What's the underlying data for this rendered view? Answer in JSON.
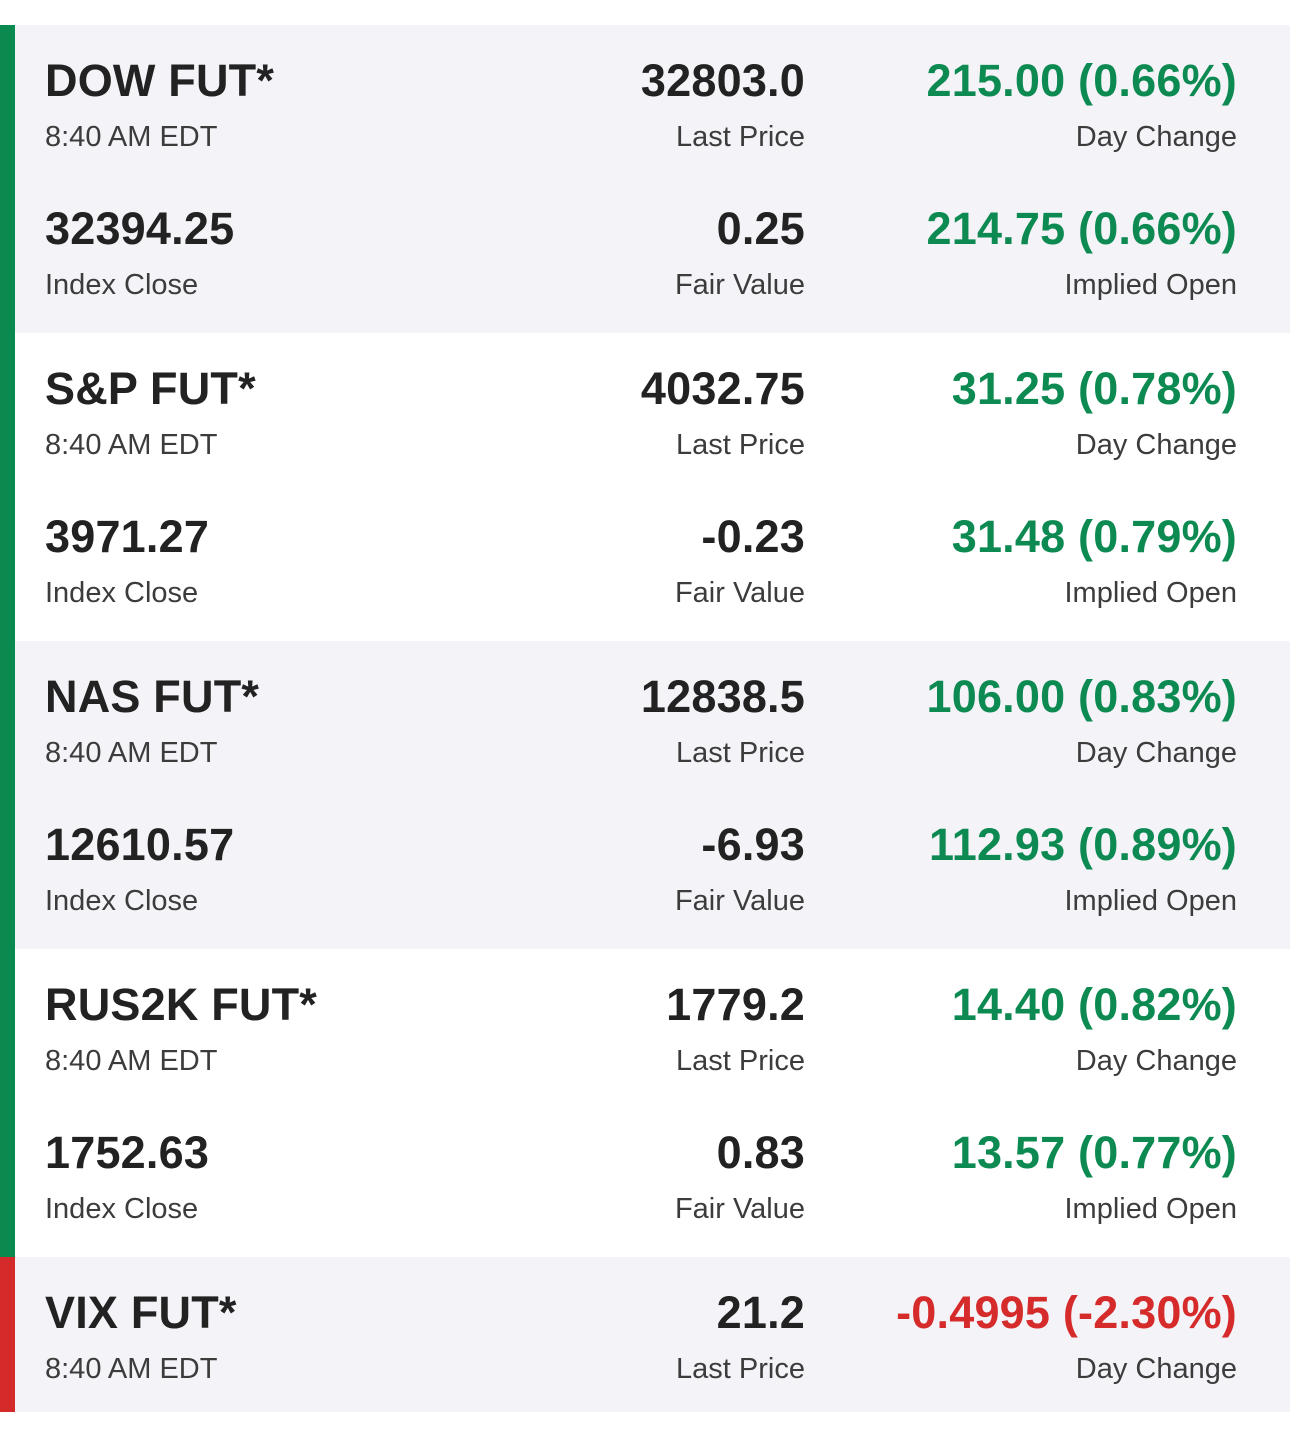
{
  "colors": {
    "positive": "#0d8a52",
    "negative": "#d62b2b",
    "accent_up": "#0a8a4e",
    "accent_down": "#d42a2a"
  },
  "futures": [
    {
      "name": "DOW FUT*",
      "time": "8:40 AM EDT",
      "last_price": "32803.0",
      "last_price_label": "Last Price",
      "day_change": "215.00 (0.66%)",
      "day_change_label": "Day Change",
      "index_close": "32394.25",
      "index_close_label": "Index Close",
      "fair_value": "0.25",
      "fair_value_label": "Fair Value",
      "implied_open": "214.75 (0.66%)",
      "implied_open_label": "Implied Open"
    },
    {
      "name": "S&P FUT*",
      "time": "8:40 AM EDT",
      "last_price": "4032.75",
      "last_price_label": "Last Price",
      "day_change": "31.25 (0.78%)",
      "day_change_label": "Day Change",
      "index_close": "3971.27",
      "index_close_label": "Index Close",
      "fair_value": "-0.23",
      "fair_value_label": "Fair Value",
      "implied_open": "31.48 (0.79%)",
      "implied_open_label": "Implied Open"
    },
    {
      "name": "NAS FUT*",
      "time": "8:40 AM EDT",
      "last_price": "12838.5",
      "last_price_label": "Last Price",
      "day_change": "106.00 (0.83%)",
      "day_change_label": "Day Change",
      "index_close": "12610.57",
      "index_close_label": "Index Close",
      "fair_value": "-6.93",
      "fair_value_label": "Fair Value",
      "implied_open": "112.93 (0.89%)",
      "implied_open_label": "Implied Open"
    },
    {
      "name": "RUS2K FUT*",
      "time": "8:40 AM EDT",
      "last_price": "1779.2",
      "last_price_label": "Last Price",
      "day_change": "14.40 (0.82%)",
      "day_change_label": "Day Change",
      "index_close": "1752.63",
      "index_close_label": "Index Close",
      "fair_value": "0.83",
      "fair_value_label": "Fair Value",
      "implied_open": "13.57 (0.77%)",
      "implied_open_label": "Implied Open"
    },
    {
      "name": "VIX FUT*",
      "time": "8:40 AM EDT",
      "last_price": "21.2",
      "last_price_label": "Last Price",
      "day_change": "-0.4995 (-2.30%)",
      "day_change_label": "Day Change"
    }
  ]
}
